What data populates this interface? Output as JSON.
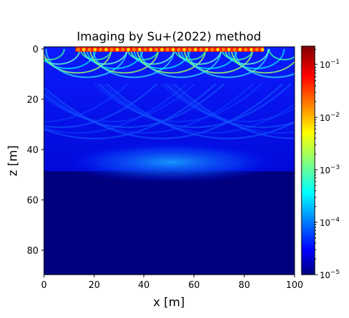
{
  "chart_data": {
    "type": "heatmap",
    "title": "Imaging by Su+(2022) method",
    "xlabel": "x [m]",
    "ylabel": "z [m]",
    "xlim": [
      0,
      100
    ],
    "ylim": [
      90,
      0
    ],
    "x_ticks": [
      0,
      20,
      40,
      60,
      80,
      100
    ],
    "y_ticks": [
      0,
      20,
      40,
      60,
      80
    ],
    "colormap": "jet",
    "color_scale": "log",
    "color_range": [
      1e-05,
      0.2
    ],
    "colorbar_ticks": [
      {
        "value": 1e-05,
        "label": "10^-5"
      },
      {
        "value": 0.0001,
        "label": "10^-4"
      },
      {
        "value": 0.001,
        "label": "10^-3"
      },
      {
        "value": 0.01,
        "label": "10^-2"
      },
      {
        "value": 0.1,
        "label": "10^-1"
      }
    ],
    "regions": [
      {
        "description": "very high amplitude band",
        "x_range": [
          13,
          88
        ],
        "z_range": [
          0,
          2
        ],
        "approx_value": 0.1
      },
      {
        "description": "high amplitude arc pattern",
        "x_range": [
          0,
          95
        ],
        "z_range": [
          0,
          17
        ],
        "approx_value": 0.002
      },
      {
        "description": "moderate diffraction arcs",
        "x_range": [
          0,
          100
        ],
        "z_range": [
          10,
          49
        ],
        "approx_value": 5e-05
      },
      {
        "description": "bright focus zone",
        "x_range": [
          30,
          75
        ],
        "z_range": [
          38,
          49
        ],
        "approx_value": 0.001
      },
      {
        "description": "background floor",
        "x_range": [
          0,
          100
        ],
        "z_range": [
          49,
          90
        ],
        "approx_value": 1e-05
      }
    ]
  },
  "colors": {
    "floor": "#00007f",
    "colormap_stops": [
      "#00007f",
      "#0000ff",
      "#00ffff",
      "#ffff00",
      "#ff0000",
      "#7f0000"
    ]
  }
}
